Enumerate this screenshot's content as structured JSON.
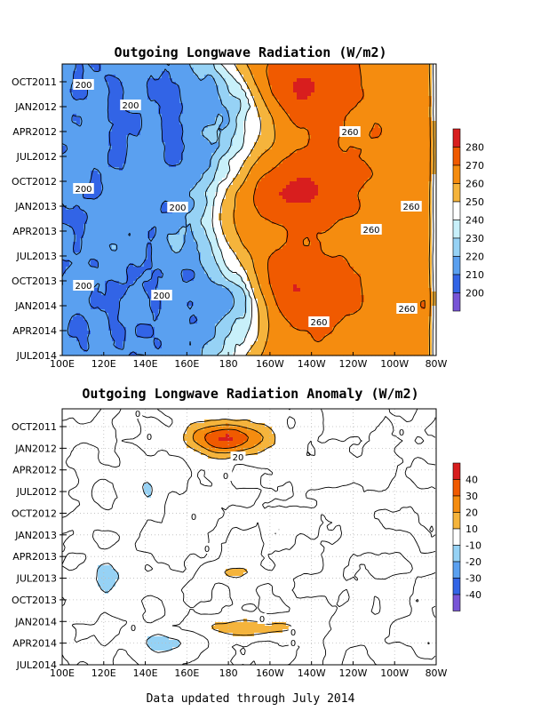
{
  "footer": "Data updated through July 2014",
  "chart_data": [
    {
      "type": "heatmap",
      "title": "Outgoing Longwave Radiation (W/m2)",
      "x_ticks": [
        "100E",
        "120E",
        "140E",
        "160E",
        "180",
        "160W",
        "140W",
        "120W",
        "100W",
        "80W"
      ],
      "y_ticks": [
        "OCT2011",
        "JAN2012",
        "APR2012",
        "JUL2012",
        "OCT2012",
        "JAN2013",
        "APR2013",
        "JUL2013",
        "OCT2013",
        "JAN2014",
        "APR2014",
        "JUL2014"
      ],
      "colorbar": {
        "levels": [
          "280",
          "270",
          "260",
          "250",
          "240",
          "230",
          "220",
          "210",
          "200"
        ],
        "colors": [
          "#d81e1e",
          "#f05a00",
          "#f58c0f",
          "#f5b43c",
          "#ffffff",
          "#c8f0fa",
          "#96d2f5",
          "#5aa0f0",
          "#3264e6",
          "#7855d7"
        ]
      },
      "contour_labels": [
        "200",
        "200",
        "200",
        "200",
        "200",
        "200",
        "260",
        "260",
        "260",
        "260",
        "260"
      ],
      "regions": [
        {
          "level": 200,
          "lon": 108,
          "month": 7
        },
        {
          "level": 200,
          "lon": 112,
          "month": 18
        },
        {
          "level": 200,
          "lon": 152,
          "month": 19
        },
        {
          "level": 200,
          "lon": 150,
          "month": 29
        },
        {
          "level": 275,
          "lon": 212,
          "month": 15
        },
        {
          "level": 275,
          "lon": 215,
          "month": 26
        },
        {
          "level": 275,
          "lon": 208,
          "month": 3
        }
      ]
    },
    {
      "type": "heatmap",
      "title": "Outgoing Longwave Radiation Anomaly (W/m2)",
      "x_ticks": [
        "100E",
        "120E",
        "140E",
        "160E",
        "180",
        "160W",
        "140W",
        "120W",
        "100W",
        "80W"
      ],
      "y_ticks": [
        "OCT2011",
        "JAN2012",
        "APR2012",
        "JUL2012",
        "OCT2012",
        "JAN2013",
        "APR2013",
        "JUL2013",
        "OCT2013",
        "JAN2014",
        "APR2014",
        "JUL2014"
      ],
      "colorbar": {
        "levels": [
          "40",
          "30",
          "20",
          "10",
          "-10",
          "-20",
          "-30",
          "-40"
        ],
        "colors": [
          "#d81e1e",
          "#f05a00",
          "#f58c0f",
          "#f5b43c",
          "#ffffff",
          "#96d2f5",
          "#5aa0f0",
          "#3264e6",
          "#7855d7"
        ]
      },
      "contour_labels": [
        "0",
        "0",
        "0",
        "0",
        "0",
        "0",
        "0",
        "0",
        "0",
        "0",
        "0",
        "20"
      ],
      "regions": [
        {
          "level": 20,
          "lon": 178,
          "month": 4
        },
        {
          "level": 30,
          "lon": 178,
          "month": 4
        },
        {
          "level": 40,
          "lon": 180,
          "month": 4
        },
        {
          "level": 10,
          "lon": 188,
          "month": 29
        },
        {
          "level": 10,
          "lon": 182,
          "month": 22
        },
        {
          "level": -10,
          "lon": 120,
          "month": 23
        },
        {
          "level": -10,
          "lon": 150,
          "month": 31
        },
        {
          "level": -10,
          "lon": 140,
          "month": 11
        }
      ]
    }
  ]
}
